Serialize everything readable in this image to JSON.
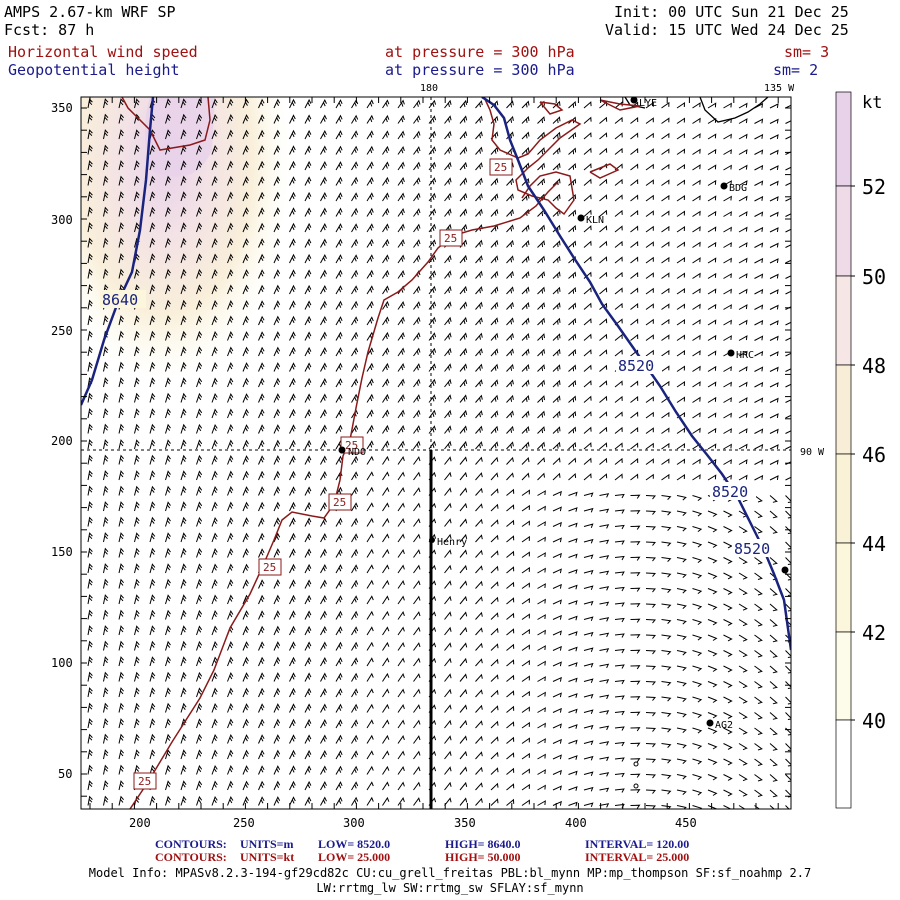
{
  "header": {
    "model": "AMPS 2.67-km WRF SP",
    "fcst": "Fcst:   87 h",
    "init": "Init: 00 UTC Sun 21 Dec 25",
    "valid": "Valid: 15 UTC Wed 24 Dec 25",
    "field1_name": "Horizontal wind speed",
    "field1_level": "at pressure =  300 hPa",
    "field1_sm": "sm= 3",
    "field2_name": "Geopotential height",
    "field2_level": "at pressure =  300 hPa",
    "field2_sm": "sm= 2"
  },
  "map": {
    "lon_labels": {
      "top_180": "180",
      "top_135w": "135 W",
      "right_90w": "90 W"
    },
    "x_ticks": [
      "200",
      "250",
      "300",
      "350",
      "400",
      "450"
    ],
    "y_ticks": [
      "350",
      "300",
      "250",
      "200",
      "150",
      "100",
      "50"
    ],
    "stations": [
      {
        "name": "LYE"
      },
      {
        "name": "BDG"
      },
      {
        "name": "KLN"
      },
      {
        "name": "HRC"
      },
      {
        "name": "NDO"
      },
      {
        "name": "Henry"
      },
      {
        "name": "AG2"
      }
    ],
    "height_contour_labels": [
      "8640",
      "8520",
      "8520",
      "8520"
    ],
    "speed_contour_labels": [
      "25",
      "25",
      "25",
      "25",
      "25",
      "25"
    ]
  },
  "colorbar": {
    "unit": "kt",
    "labels": [
      "52",
      "50",
      "48",
      "46",
      "44",
      "42",
      "40"
    ],
    "colors": [
      "#e8d2ea",
      "#f0dce8",
      "#f6e6e6",
      "#f8eed8",
      "#faf2d6",
      "#fbf6dc",
      "#fdfbea"
    ]
  },
  "footer": {
    "line1_label": "CONTOURS:",
    "line1_units": "UNITS=m",
    "line1_low": "LOW=   8520.0",
    "line1_high": "HIGH=  8640.0",
    "line1_int": "INTERVAL=    120.00",
    "line2_label": "CONTOURS:",
    "line2_units": "UNITS=kt",
    "line2_low": "LOW=   25.000",
    "line2_high": "HIGH=  50.000",
    "line2_int": "INTERVAL=    25.000",
    "model_info_1": "Model Info: MPASv8.2.3-194-gf29cd82c CU:cu_grell_freitas PBL:bl_mynn MP:mp_thompson SF:sf_noahmp 2.7",
    "model_info_2": "LW:rrtmg_lw SW:rrtmg_sw SFLAY:sf_mynn"
  },
  "colors": {
    "height_contour": "#1a237e",
    "speed_contour": "#8b1a1a",
    "coast": "#000000"
  }
}
